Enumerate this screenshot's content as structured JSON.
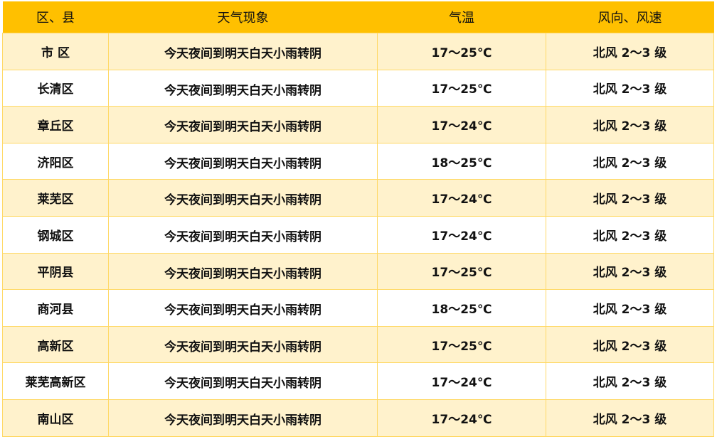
{
  "colors": {
    "header": "#FFC000",
    "row_alt": "#FFF2CC",
    "border": "#FFD966"
  },
  "headers": [
    "区、县",
    "天气现象",
    "气温",
    "风向、风速"
  ],
  "rows": [
    {
      "district": "市 区",
      "weather": "今天夜间到明天白天小雨转阴",
      "temp": "17～25℃",
      "wind": "北风 2～3 级"
    },
    {
      "district": "长清区",
      "weather": "今天夜间到明天白天小雨转阴",
      "temp": "17～25℃",
      "wind": "北风 2～3 级"
    },
    {
      "district": "章丘区",
      "weather": "今天夜间到明天白天小雨转阴",
      "temp": "17～24℃",
      "wind": "北风 2～3 级"
    },
    {
      "district": "济阳区",
      "weather": "今天夜间到明天白天小雨转阴",
      "temp": "18～25℃",
      "wind": "北风 2～3 级"
    },
    {
      "district": "莱芜区",
      "weather": "今天夜间到明天白天小雨转阴",
      "temp": "17～24℃",
      "wind": "北风 2～3 级"
    },
    {
      "district": "钢城区",
      "weather": "今天夜间到明天白天小雨转阴",
      "temp": "17～24℃",
      "wind": "北风 2～3 级"
    },
    {
      "district": "平阴县",
      "weather": "今天夜间到明天白天小雨转阴",
      "temp": "17～25℃",
      "wind": "北风 2～3 级"
    },
    {
      "district": "商河县",
      "weather": "今天夜间到明天白天小雨转阴",
      "temp": "18～25℃",
      "wind": "北风 2～3 级"
    },
    {
      "district": "高新区",
      "weather": "今天夜间到明天白天小雨转阴",
      "temp": "17～25℃",
      "wind": "北风 2～3 级"
    },
    {
      "district": "莱芜高新区",
      "weather": "今天夜间到明天白天小雨转阴",
      "temp": "17～24℃",
      "wind": "北风 2～3 级"
    },
    {
      "district": "南山区",
      "weather": "今天夜间到明天白天小雨转阴",
      "temp": "17～24℃",
      "wind": "北风 2～3 级"
    }
  ]
}
